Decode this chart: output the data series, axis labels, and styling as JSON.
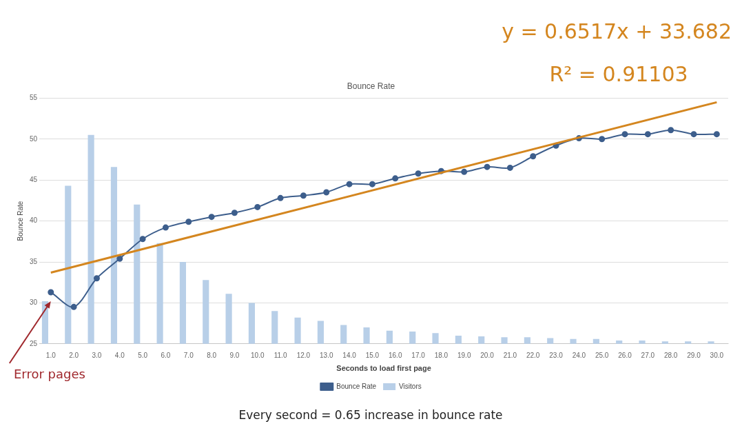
{
  "chart_data": {
    "type": "bar",
    "title": "Bounce Rate",
    "xlabel": "Seconds to load first page",
    "ylabel": "Bounce Rate",
    "categories": [
      "1.0",
      "2.0",
      "3.0",
      "4.0",
      "5.0",
      "6.0",
      "7.0",
      "8.0",
      "9.0",
      "10.0",
      "11.0",
      "12.0",
      "13.0",
      "14.0",
      "15.0",
      "16.0",
      "17.0",
      "18.0",
      "19.0",
      "20.0",
      "21.0",
      "22.0",
      "23.0",
      "24.0",
      "25.0",
      "26.0",
      "27.0",
      "28.0",
      "29.0",
      "30.0"
    ],
    "series": [
      {
        "name": "Bounce Rate",
        "type": "line",
        "color": "#3d5e8c",
        "marker": "circle",
        "values": [
          31.3,
          29.5,
          33.0,
          35.4,
          37.8,
          39.2,
          39.9,
          40.5,
          41.0,
          41.7,
          42.8,
          43.1,
          43.5,
          44.5,
          44.5,
          45.2,
          45.8,
          46.1,
          46.0,
          46.6,
          46.5,
          47.9,
          49.2,
          50.1,
          50.0,
          50.6,
          50.6,
          51.1,
          50.6,
          50.6
        ]
      },
      {
        "name": "Visitors",
        "color": "#b8cfe8",
        "values": [
          30.2,
          44.3,
          50.5,
          46.6,
          42.0,
          37.3,
          35.0,
          32.8,
          31.1,
          30.0,
          29.0,
          28.2,
          27.8,
          27.3,
          27.0,
          26.6,
          26.5,
          26.3,
          26.0,
          25.9,
          25.8,
          25.8,
          25.7,
          25.6,
          25.6,
          25.4,
          25.4,
          25.3,
          25.3,
          25.3
        ]
      },
      {
        "type": "line",
        "color": "#d4861f",
        "marker": "none",
        "x": [
          "1.0",
          "30.0"
        ],
        "values": [
          33.7,
          54.5
        ]
      }
    ],
    "ylim": [
      25,
      55
    ],
    "yticks": [
      25,
      30,
      35,
      40,
      45,
      50,
      55
    ],
    "grid": "y",
    "legend": "bottom",
    "annotations": [
      "y = 0.6517x + 33.682",
      "R² = 0.91103",
      {
        "text": "Error pages",
        "x": "1.0",
        "y": 30.2
      },
      "Every second = 0.65 increase in bounce rate"
    ]
  }
}
